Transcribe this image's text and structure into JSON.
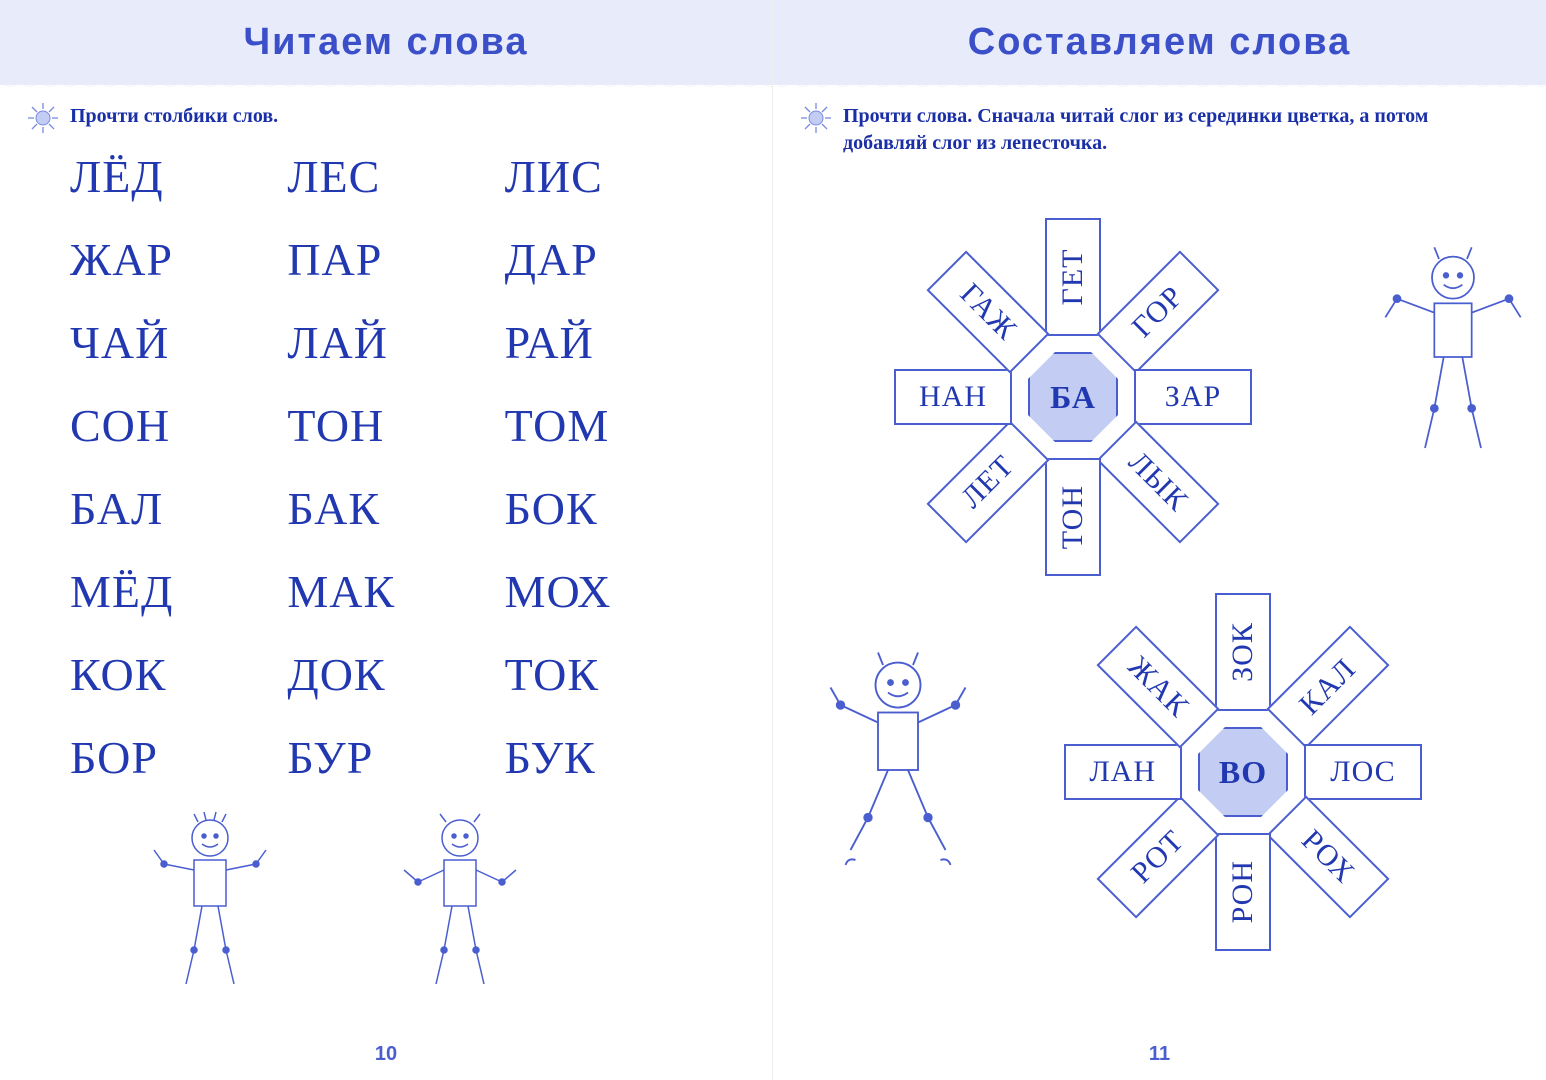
{
  "left": {
    "title": "Читаем слова",
    "instruction": "Прочти столбики слов.",
    "page_number": "10",
    "grid": [
      [
        "ЛЁД",
        "ЛЕС",
        "ЛИС"
      ],
      [
        "ЖАР",
        "ПАР",
        "ДАР"
      ],
      [
        "ЧАЙ",
        "ЛАЙ",
        "РАЙ"
      ],
      [
        "СОН",
        "ТОН",
        "ТОМ"
      ],
      [
        "БАЛ",
        "БАК",
        "БОК"
      ],
      [
        "МЁД",
        "МАК",
        "МОХ"
      ],
      [
        "КОК",
        "ДОК",
        "ТОК"
      ],
      [
        "БОР",
        "БУР",
        "БУК"
      ]
    ],
    "word_color": "#2238b0",
    "word_fontsize": 46
  },
  "right": {
    "title": "Составляем слова",
    "instruction": "Прочти слова. Сначала читай слог из серединки цветка, а потом добавляй слог из лепесточка.",
    "page_number": "11",
    "flowers": [
      {
        "center": "БА",
        "petals": [
          "ГЕТ",
          "ГОР",
          "ЗАР",
          "ЛЫК",
          "ТОН",
          "ЛЕТ",
          "НАН",
          "ГАЖ"
        ]
      },
      {
        "center": "ВО",
        "petals": [
          "ЗОК",
          "КАЛ",
          "ЛОС",
          "РОХ",
          "РОН",
          "РОТ",
          "ЛАН",
          "ЖАК"
        ]
      }
    ]
  },
  "style": {
    "title_color": "#3b4fc9",
    "band_bg": "#e8ecfa",
    "ink": "#2238b0",
    "accent_fill": "#c3cdf4",
    "border": "#4a5ed0",
    "petal_border_width": 2,
    "petal_fontsize": 30,
    "center_fontsize": 32,
    "title_fontsize": 38,
    "instruction_fontsize": 20,
    "flower_center_bg": "#c3cdf4",
    "robot_stroke": "#4a5ed0"
  }
}
